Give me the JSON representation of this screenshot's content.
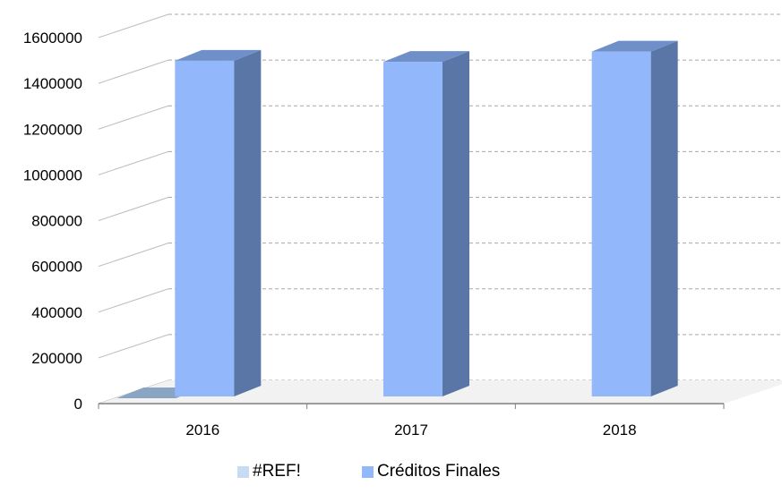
{
  "chart_data": {
    "type": "bar",
    "style": "3d-column",
    "categories": [
      "2016",
      "2017",
      "2018"
    ],
    "series": [
      {
        "name": "#REF!",
        "values": [
          0,
          0,
          0
        ],
        "color": "#c6dcf2"
      },
      {
        "name": "Créditos Finales",
        "values": [
          1530000,
          1525000,
          1570000
        ],
        "color": "#92b7fb"
      }
    ],
    "y_ticks": [
      "0",
      "200000",
      "400000",
      "600000",
      "800000",
      "1000000",
      "1200000",
      "1400000",
      "1600000"
    ],
    "ylim": [
      0,
      1600000
    ],
    "grid": true,
    "legend_position": "bottom"
  }
}
